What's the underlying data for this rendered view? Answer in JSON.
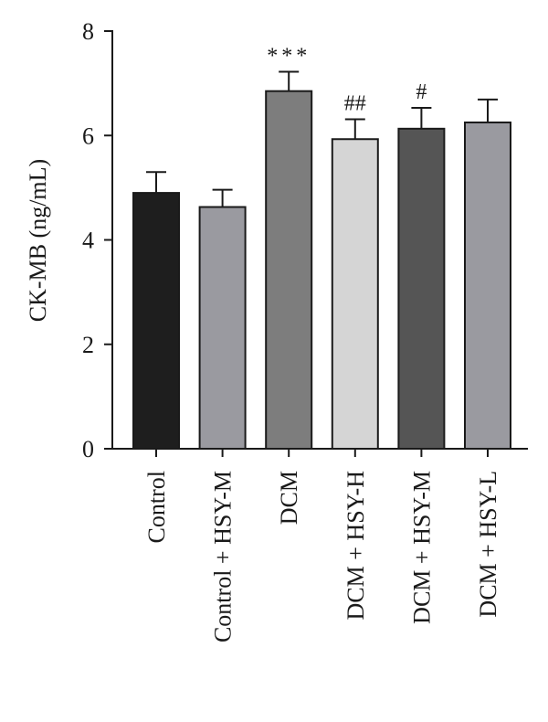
{
  "chart_data": {
    "type": "bar",
    "ylabel": "CK-MB (ng/mL)",
    "ylim": [
      0,
      8
    ],
    "yticks": [
      "0",
      "2",
      "4",
      "6",
      "8"
    ],
    "categories": [
      "Control",
      "Control + HSY-M",
      "DCM",
      "DCM + HSY-H",
      "DCM + HSY-M",
      "DCM + HSY-L"
    ],
    "values": [
      4.9,
      4.63,
      6.85,
      5.93,
      6.13,
      6.25
    ],
    "errors": [
      0.4,
      0.33,
      0.37,
      0.38,
      0.4,
      0.44
    ],
    "annotations": [
      "",
      "",
      "***",
      "##",
      "#",
      ""
    ],
    "colors": [
      "#1e1e1e",
      "#9a9aa0",
      "#7d7d7d",
      "#d5d5d5",
      "#555555",
      "#9a9aa0"
    ],
    "grid": false,
    "legend": "none"
  }
}
